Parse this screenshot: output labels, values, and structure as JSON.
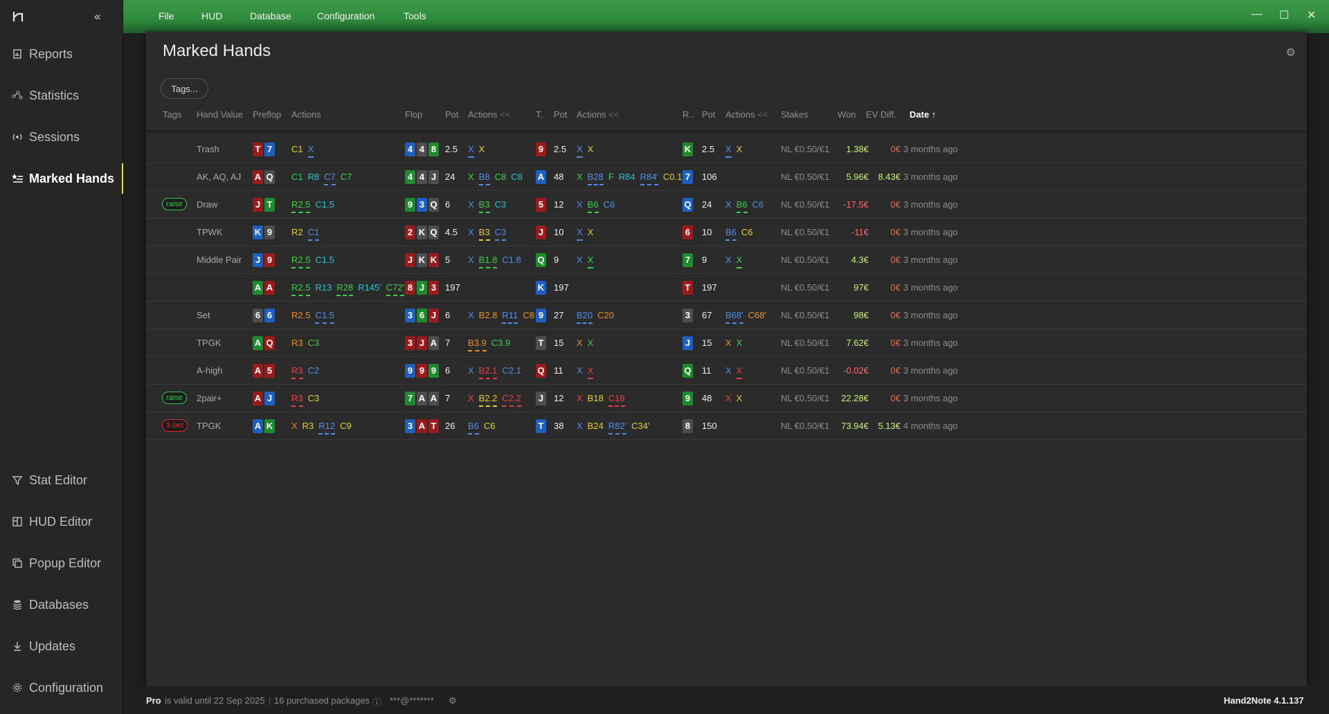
{
  "app": {
    "version": "Hand2Note 4.1.137"
  },
  "menu": [
    "File",
    "HUD",
    "Database",
    "Configuration",
    "Tools"
  ],
  "sidebar": {
    "top": [
      {
        "label": "Reports",
        "icon": "report-icon"
      },
      {
        "label": "Statistics",
        "icon": "statistics-icon"
      },
      {
        "label": "Sessions",
        "icon": "sessions-icon"
      },
      {
        "label": "Marked Hands",
        "icon": "marked-hands-icon"
      }
    ],
    "bottom": [
      {
        "label": "Stat Editor",
        "icon": "filter-icon"
      },
      {
        "label": "HUD Editor",
        "icon": "hud-editor-icon"
      },
      {
        "label": "Popup Editor",
        "icon": "popup-icon"
      },
      {
        "label": "Databases",
        "icon": "database-icon"
      },
      {
        "label": "Updates",
        "icon": "download-icon"
      },
      {
        "label": "Configuration",
        "icon": "gear-icon"
      }
    ]
  },
  "page": {
    "title": "Marked Hands",
    "tags_button": "Tags..."
  },
  "columns": {
    "tags": "Tags",
    "hand_value": "Hand Value",
    "preflop": "Preflop",
    "actions": "Actions",
    "flop": "Flop",
    "pot": "Pot",
    "turn": "T..",
    "river": "R..",
    "stakes": "Stakes",
    "won": "Won",
    "ev_diff": "EV Diff.",
    "date": "Date ↑",
    "collapse": "<<"
  },
  "rows": [
    {
      "tag": null,
      "value": "Trash",
      "pre": [
        [
          "T",
          "red"
        ],
        [
          "7",
          "blue"
        ]
      ],
      "pre_act": [
        [
          "C1",
          "y",
          0
        ],
        [
          "X",
          "b",
          1
        ]
      ],
      "flop": [
        [
          "4",
          "blue"
        ],
        [
          "4",
          "gray"
        ],
        [
          "8",
          "green"
        ]
      ],
      "fpot": "2.5",
      "f_act": [
        [
          "X",
          "b",
          1
        ],
        [
          "X",
          "y",
          0
        ]
      ],
      "turn": [
        [
          "9",
          "red"
        ]
      ],
      "tpot": "2.5",
      "t_act": [
        [
          "X",
          "b",
          1
        ],
        [
          "X",
          "y",
          0
        ]
      ],
      "river": [
        [
          "K",
          "green"
        ]
      ],
      "rpot": "2.5",
      "r_act": [
        [
          "X",
          "b",
          1
        ],
        [
          "X",
          "y",
          0
        ]
      ],
      "stakes": "NL €0.50/€1",
      "won": "1.38€",
      "ev": "0€",
      "date": "3 months ago"
    },
    {
      "tag": null,
      "value": "AK, AQ, AJ",
      "pre": [
        [
          "A",
          "red"
        ],
        [
          "Q",
          "gray"
        ]
      ],
      "pre_act": [
        [
          "C1",
          "g",
          0
        ],
        [
          "R8",
          "c",
          0
        ],
        [
          "C7",
          "b",
          1
        ],
        [
          "C7",
          "g",
          0
        ]
      ],
      "flop": [
        [
          "4",
          "green"
        ],
        [
          "4",
          "gray"
        ],
        [
          "J",
          "gray"
        ]
      ],
      "fpot": "24",
      "f_act": [
        [
          "X",
          "g",
          0
        ],
        [
          "B8",
          "b",
          1
        ],
        [
          "C8",
          "g",
          0
        ],
        [
          "C8",
          "c",
          0
        ]
      ],
      "turn": [
        [
          "A",
          "blue"
        ]
      ],
      "tpot": "48",
      "t_act": [
        [
          "X",
          "g",
          0
        ],
        [
          "B28",
          "b",
          1
        ],
        [
          "F",
          "g",
          0
        ],
        [
          "R84",
          "c",
          0
        ],
        [
          "R84'",
          "b",
          1
        ],
        [
          "C0.1'",
          "y",
          0
        ]
      ],
      "river": [
        [
          "7",
          "blue"
        ]
      ],
      "rpot": "106",
      "r_act": [],
      "stakes": "NL €0.50/€1",
      "won": "5.96€",
      "ev": "8.43€",
      "date": "3 months ago"
    },
    {
      "tag": "raise",
      "value": "Draw",
      "pre": [
        [
          "J",
          "red"
        ],
        [
          "T",
          "green"
        ]
      ],
      "pre_act": [
        [
          "R2.5",
          "g",
          1
        ],
        [
          "C1.5",
          "c",
          0
        ]
      ],
      "flop": [
        [
          "9",
          "green"
        ],
        [
          "3",
          "blue"
        ],
        [
          "Q",
          "gray"
        ]
      ],
      "fpot": "6",
      "f_act": [
        [
          "X",
          "b",
          0
        ],
        [
          "B3",
          "g",
          1
        ],
        [
          "C3",
          "c",
          0
        ]
      ],
      "turn": [
        [
          "5",
          "red"
        ]
      ],
      "tpot": "12",
      "t_act": [
        [
          "X",
          "b",
          0
        ],
        [
          "B6",
          "g",
          1
        ],
        [
          "C6",
          "b",
          0
        ]
      ],
      "river": [
        [
          "Q",
          "blue"
        ]
      ],
      "rpot": "24",
      "r_act": [
        [
          "X",
          "b",
          0
        ],
        [
          "B6",
          "g",
          1
        ],
        [
          "C6",
          "b",
          0
        ]
      ],
      "stakes": "NL €0.50/€1",
      "won": "-17.5€",
      "ev": "0€",
      "date": "3 months ago"
    },
    {
      "tag": null,
      "value": "TPWK",
      "pre": [
        [
          "K",
          "blue"
        ],
        [
          "9",
          "gray"
        ]
      ],
      "pre_act": [
        [
          "R2",
          "y",
          0
        ],
        [
          "C1",
          "b",
          1
        ]
      ],
      "flop": [
        [
          "2",
          "red"
        ],
        [
          "K",
          "gray"
        ],
        [
          "Q",
          "gray"
        ]
      ],
      "fpot": "4.5",
      "f_act": [
        [
          "X",
          "b",
          0
        ],
        [
          "B3",
          "y",
          1
        ],
        [
          "C3",
          "b",
          1
        ]
      ],
      "turn": [
        [
          "J",
          "red"
        ]
      ],
      "tpot": "10",
      "t_act": [
        [
          "X",
          "b",
          1
        ],
        [
          "X",
          "y",
          0
        ]
      ],
      "river": [
        [
          "6",
          "red"
        ]
      ],
      "rpot": "10",
      "r_act": [
        [
          "B6",
          "b",
          1
        ],
        [
          "C6",
          "y",
          0
        ]
      ],
      "stakes": "NL €0.50/€1",
      "won": "-11€",
      "ev": "0€",
      "date": "3 months ago"
    },
    {
      "tag": null,
      "value": "Middle Pair",
      "pre": [
        [
          "J",
          "blue"
        ],
        [
          "9",
          "red"
        ]
      ],
      "pre_act": [
        [
          "R2.5",
          "g",
          1
        ],
        [
          "C1.5",
          "c",
          0
        ]
      ],
      "flop": [
        [
          "J",
          "red"
        ],
        [
          "K",
          "gray"
        ],
        [
          "K",
          "red"
        ]
      ],
      "fpot": "5",
      "f_act": [
        [
          "X",
          "b",
          0
        ],
        [
          "B1.8",
          "g",
          1
        ],
        [
          "C1.8",
          "b",
          0
        ]
      ],
      "turn": [
        [
          "Q",
          "green"
        ]
      ],
      "tpot": "9",
      "t_act": [
        [
          "X",
          "b",
          0
        ],
        [
          "X",
          "g",
          1
        ]
      ],
      "river": [
        [
          "7",
          "green"
        ]
      ],
      "rpot": "9",
      "r_act": [
        [
          "X",
          "b",
          0
        ],
        [
          "X",
          "g",
          1
        ]
      ],
      "stakes": "NL €0.50/€1",
      "won": "4.3€",
      "ev": "0€",
      "date": "3 months ago"
    },
    {
      "tag": null,
      "value": "",
      "pre": [
        [
          "A",
          "green"
        ],
        [
          "A",
          "red"
        ]
      ],
      "pre_act": [
        [
          "R2.5",
          "g",
          1
        ],
        [
          "R13",
          "c",
          0
        ],
        [
          "R28",
          "g",
          1
        ],
        [
          "R145'",
          "c",
          0
        ],
        [
          "C72'",
          "g",
          1
        ]
      ],
      "flop": [
        [
          "8",
          "red"
        ],
        [
          "J",
          "green"
        ],
        [
          "3",
          "red"
        ]
      ],
      "fpot": "197",
      "f_act": [],
      "turn": [
        [
          "K",
          "blue"
        ]
      ],
      "tpot": "197",
      "t_act": [],
      "river": [
        [
          "T",
          "red"
        ]
      ],
      "rpot": "197",
      "r_act": [],
      "stakes": "NL €0.50/€1",
      "won": "97€",
      "ev": "0€",
      "date": "3 months ago"
    },
    {
      "tag": null,
      "value": "Set",
      "pre": [
        [
          "6",
          "gray"
        ],
        [
          "6",
          "blue"
        ]
      ],
      "pre_act": [
        [
          "R2.5",
          "o",
          0
        ],
        [
          "C1.5",
          "b",
          1
        ]
      ],
      "flop": [
        [
          "3",
          "blue"
        ],
        [
          "6",
          "green"
        ],
        [
          "J",
          "red"
        ]
      ],
      "fpot": "6",
      "f_act": [
        [
          "X",
          "b",
          0
        ],
        [
          "B2.8",
          "o",
          0
        ],
        [
          "R11",
          "b",
          1
        ],
        [
          "C8",
          "o",
          0
        ]
      ],
      "turn": [
        [
          "9",
          "blue"
        ]
      ],
      "tpot": "27",
      "t_act": [
        [
          "B20",
          "b",
          1
        ],
        [
          "C20",
          "o",
          0
        ]
      ],
      "river": [
        [
          "3",
          "gray"
        ]
      ],
      "rpot": "67",
      "r_act": [
        [
          "B68'",
          "b",
          1
        ],
        [
          "C68'",
          "o",
          0
        ]
      ],
      "stakes": "NL €0.50/€1",
      "won": "98€",
      "ev": "0€",
      "date": "3 months ago"
    },
    {
      "tag": null,
      "value": "TPGK",
      "pre": [
        [
          "A",
          "green"
        ],
        [
          "Q",
          "red"
        ]
      ],
      "pre_act": [
        [
          "R3",
          "o",
          0
        ],
        [
          "C3",
          "g",
          0
        ]
      ],
      "flop": [
        [
          "3",
          "red"
        ],
        [
          "J",
          "red"
        ],
        [
          "A",
          "gray"
        ]
      ],
      "fpot": "7",
      "f_act": [
        [
          "B3.9",
          "o",
          1
        ],
        [
          "C3.9",
          "g",
          0
        ]
      ],
      "turn": [
        [
          "T",
          "gray"
        ]
      ],
      "tpot": "15",
      "t_act": [
        [
          "X",
          "o",
          0
        ],
        [
          "X",
          "g",
          0
        ]
      ],
      "river": [
        [
          "J",
          "blue"
        ]
      ],
      "rpot": "15",
      "r_act": [
        [
          "X",
          "o",
          0
        ],
        [
          "X",
          "g",
          0
        ]
      ],
      "stakes": "NL €0.50/€1",
      "won": "7.62€",
      "ev": "0€",
      "date": "3 months ago"
    },
    {
      "tag": null,
      "value": "A-high",
      "pre": [
        [
          "A",
          "red"
        ],
        [
          "5",
          "red"
        ]
      ],
      "pre_act": [
        [
          "R3",
          "r",
          1
        ],
        [
          "C2",
          "b",
          0
        ]
      ],
      "flop": [
        [
          "9",
          "blue"
        ],
        [
          "9",
          "red"
        ],
        [
          "9",
          "green"
        ]
      ],
      "fpot": "6",
      "f_act": [
        [
          "X",
          "b",
          0
        ],
        [
          "B2.1",
          "r",
          1
        ],
        [
          "C2.1",
          "b",
          0
        ]
      ],
      "turn": [
        [
          "Q",
          "red"
        ]
      ],
      "tpot": "11",
      "t_act": [
        [
          "X",
          "b",
          0
        ],
        [
          "X",
          "r",
          1
        ]
      ],
      "river": [
        [
          "Q",
          "green"
        ]
      ],
      "rpot": "11",
      "r_act": [
        [
          "X",
          "b",
          0
        ],
        [
          "X",
          "r",
          1
        ]
      ],
      "stakes": "NL €0.50/€1",
      "won": "-0.02€",
      "ev": "0€",
      "date": "3 months ago"
    },
    {
      "tag": "raise",
      "value": "2pair+",
      "pre": [
        [
          "A",
          "red"
        ],
        [
          "J",
          "blue"
        ]
      ],
      "pre_act": [
        [
          "R3",
          "r",
          1
        ],
        [
          "C3",
          "y",
          0
        ]
      ],
      "flop": [
        [
          "7",
          "green"
        ],
        [
          "A",
          "gray"
        ],
        [
          "A",
          "gray"
        ]
      ],
      "fpot": "7",
      "f_act": [
        [
          "X",
          "r",
          0
        ],
        [
          "B2.2",
          "y",
          1
        ],
        [
          "C2.2",
          "r",
          1
        ]
      ],
      "turn": [
        [
          "J",
          "gray"
        ]
      ],
      "tpot": "12",
      "t_act": [
        [
          "X",
          "r",
          0
        ],
        [
          "B18",
          "y",
          0
        ],
        [
          "C18",
          "r",
          1
        ]
      ],
      "river": [
        [
          "9",
          "green"
        ]
      ],
      "rpot": "48",
      "r_act": [
        [
          "X",
          "r",
          0
        ],
        [
          "X",
          "y",
          0
        ]
      ],
      "stakes": "NL €0.50/€1",
      "won": "22.28€",
      "ev": "0€",
      "date": "3 months ago"
    },
    {
      "tag": "3-bet",
      "value": "TPGK",
      "pre": [
        [
          "A",
          "blue"
        ],
        [
          "K",
          "green"
        ]
      ],
      "pre_act": [
        [
          "X",
          "o",
          0
        ],
        [
          "R3",
          "y",
          0
        ],
        [
          "R12",
          "b",
          1
        ],
        [
          "C9",
          "y",
          0
        ]
      ],
      "flop": [
        [
          "3",
          "blue"
        ],
        [
          "A",
          "red"
        ],
        [
          "T",
          "red"
        ]
      ],
      "fpot": "26",
      "f_act": [
        [
          "B6",
          "b",
          1
        ],
        [
          "C6",
          "y",
          0
        ]
      ],
      "turn": [
        [
          "T",
          "blue"
        ]
      ],
      "tpot": "38",
      "t_act": [
        [
          "X",
          "b",
          0
        ],
        [
          "B24",
          "y",
          0
        ],
        [
          "R82'",
          "b",
          1
        ],
        [
          "C34'",
          "y",
          0
        ]
      ],
      "river": [
        [
          "8",
          "gray"
        ]
      ],
      "rpot": "150",
      "r_act": [],
      "stakes": "NL €0.50/€1",
      "won": "73.94€",
      "ev": "5.13€",
      "date": "4 months ago"
    }
  ],
  "status": {
    "plan": "Pro",
    "valid": "is valid until 22 Sep 2025",
    "packages": "16 purchased packages",
    "account": "***@*******"
  }
}
